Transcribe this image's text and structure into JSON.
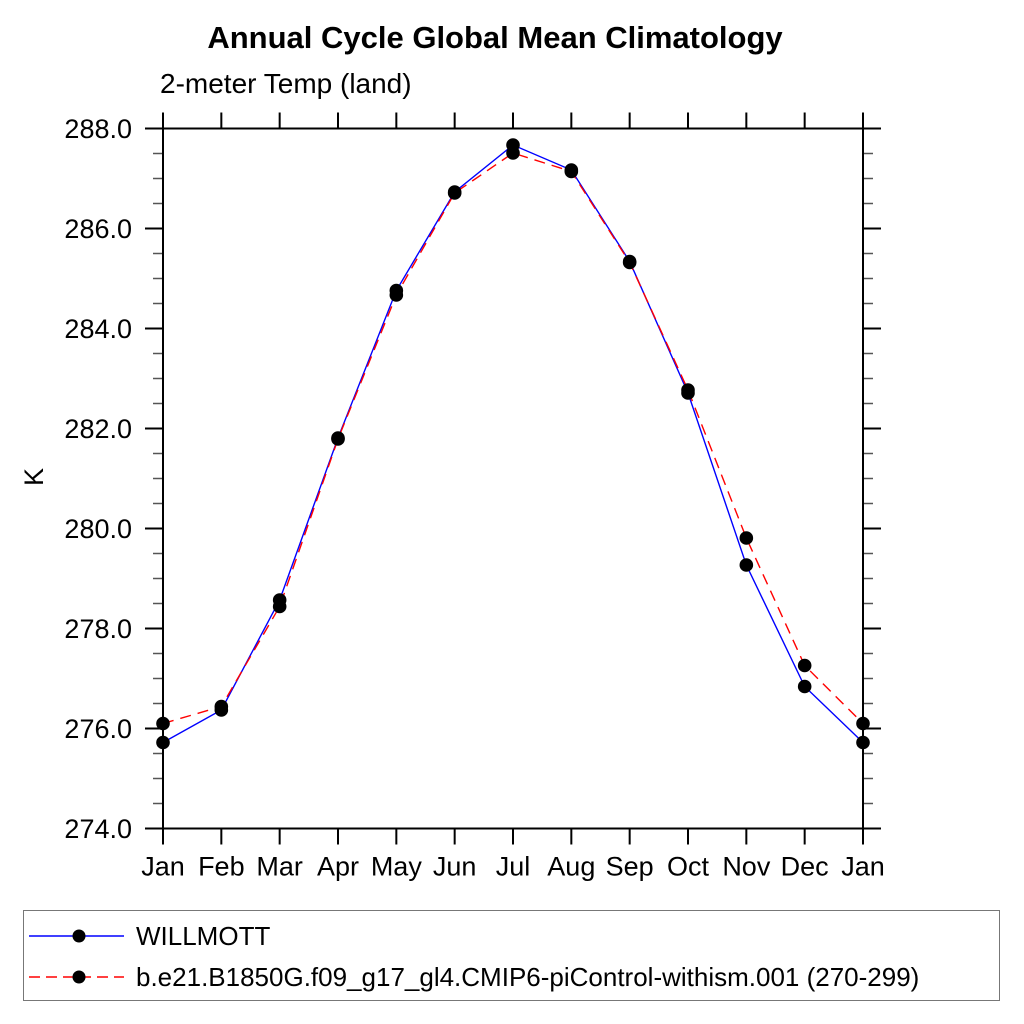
{
  "page": {
    "title": "Annual Cycle Global Mean Climatology",
    "subtitle": "2-meter Temp (land)",
    "ylabel": "K"
  },
  "chart_data": {
    "type": "line",
    "title": "Annual Cycle Global Mean Climatology",
    "subtitle": "2-meter Temp (land)",
    "xlabel": "",
    "ylabel": "K",
    "categories": [
      "Jan",
      "Feb",
      "Mar",
      "Apr",
      "May",
      "Jun",
      "Jul",
      "Aug",
      "Sep",
      "Oct",
      "Nov",
      "Dec",
      "Jan"
    ],
    "ylim": [
      274.0,
      288.0
    ],
    "y_major_step": 2.0,
    "y_minor_step": 0.5,
    "y_tick_labels": [
      "274.0",
      "276.0",
      "278.0",
      "280.0",
      "282.0",
      "284.0",
      "286.0",
      "288.0"
    ],
    "grid": false,
    "legend_position": "bottom-box",
    "marker": "filled-black-dot",
    "marker_color": "#000000",
    "axis_color": "#000000",
    "series": [
      {
        "name": "WILLMOTT",
        "color": "#0000ff",
        "style": "solid",
        "values": [
          275.72,
          276.37,
          278.57,
          281.81,
          284.76,
          286.73,
          287.67,
          287.17,
          285.34,
          282.71,
          279.27,
          276.84,
          275.72
        ]
      },
      {
        "name": "b.e21.B1850G.f09_g17_gl4.CMIP6-piControl-withism.001 (270-299)",
        "color": "#ff0000",
        "style": "dashed",
        "values": [
          276.1,
          276.44,
          278.44,
          281.79,
          284.67,
          286.71,
          287.51,
          287.14,
          285.32,
          282.77,
          279.81,
          277.26,
          276.1
        ]
      }
    ]
  }
}
